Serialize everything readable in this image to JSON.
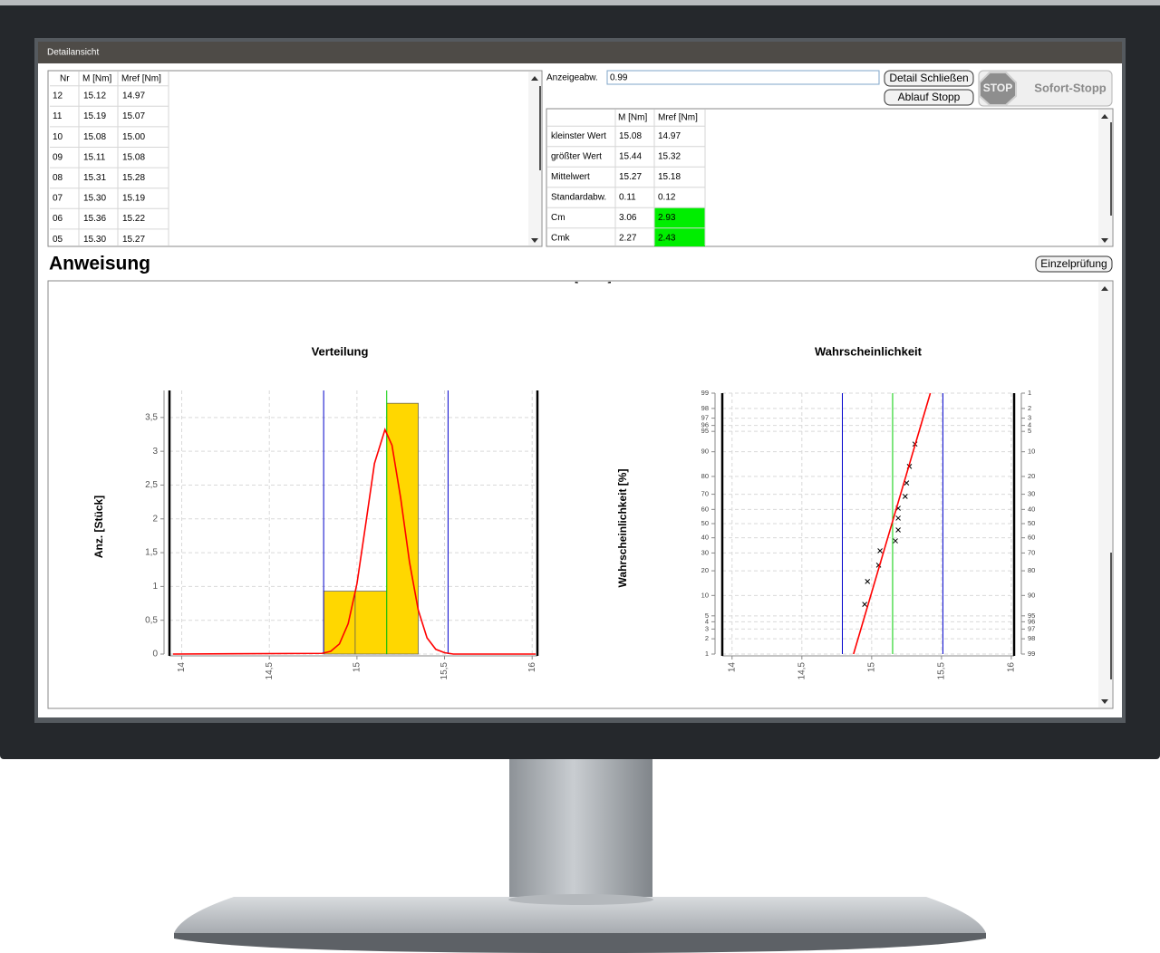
{
  "window": {
    "title": "Detailansicht"
  },
  "table": {
    "headers": [
      "Nr",
      "M [Nm]",
      "Mref [Nm]"
    ],
    "rows": [
      [
        "12",
        "15.12",
        "14.97"
      ],
      [
        "11",
        "15.19",
        "15.07"
      ],
      [
        "10",
        "15.08",
        "15.00"
      ],
      [
        "09",
        "15.11",
        "15.08"
      ],
      [
        "08",
        "15.31",
        "15.28"
      ],
      [
        "07",
        "15.30",
        "15.19"
      ],
      [
        "06",
        "15.36",
        "15.22"
      ],
      [
        "05",
        "15.30",
        "15.27"
      ]
    ]
  },
  "form": {
    "label": "Anzeigeabw.",
    "value": "0.99"
  },
  "buttons": {
    "close": "Detail Schließen",
    "stop": "Ablauf Stopp",
    "stop_sign": "STOP",
    "emergency": "Sofort-Stopp",
    "single": "Einzelprüfung"
  },
  "stats": {
    "headers": [
      "M [Nm]",
      "Mref [Nm]"
    ],
    "rows": [
      [
        "kleinster Wert",
        "15.08",
        "14.97"
      ],
      [
        "größter Wert",
        "15.44",
        "15.32"
      ],
      [
        "Mittelwert",
        "15.27",
        "15.18"
      ],
      [
        "Standardabw.",
        "0.11",
        "0.12"
      ],
      [
        "Cm",
        "3.06",
        "2.93"
      ],
      [
        "Cmk",
        "2.27",
        "2.43"
      ]
    ]
  },
  "section": {
    "title": "Anweisung",
    "cut_label": "Anzahl [Stück]"
  },
  "chart_data": [
    {
      "type": "histogram",
      "title": "Verteilung",
      "y_label": "Anz. [Stück]",
      "bins": [
        14.81,
        14.99,
        15.17,
        15.35
      ],
      "values": [
        0.93,
        0.93,
        3.71
      ],
      "color": "#ffd700",
      "xlim": [
        13.93,
        16.03
      ],
      "xticks": [
        14,
        {
          "value": 14.5,
          "label": "14,5"
        },
        15,
        {
          "value": 15.5,
          "label": "15,5"
        },
        16
      ],
      "ylim": [
        0,
        3.9
      ],
      "yticks": [
        0,
        {
          "value": 0.5,
          "label": "0,5"
        },
        1,
        {
          "value": 1.5,
          "label": "1,5"
        },
        2,
        {
          "value": 2.5,
          "label": "2,5"
        },
        3,
        {
          "value": 3.5,
          "label": "3,5"
        }
      ],
      "grid": true,
      "series": [
        {
          "type": "line",
          "color": "#ff0000",
          "x": [
            13.95,
            14.8,
            14.85,
            14.9,
            14.95,
            15,
            15.05,
            15.1,
            15.16,
            15.2,
            15.25,
            15.3,
            15.35,
            15.4,
            15.45,
            15.5,
            15.55,
            16.02
          ],
          "values": [
            0,
            0.01,
            0.04,
            0.15,
            0.45,
            1.04,
            1.92,
            2.82,
            3.32,
            3.09,
            2.3,
            1.36,
            0.65,
            0.24,
            0.07,
            0.02,
            0,
            0
          ]
        }
      ],
      "vlines": [
        {
          "x": 14.81,
          "color": "#0000cc"
        },
        {
          "x": 15.52,
          "color": "#0000cc"
        },
        {
          "x": 15.17,
          "color": "#00cc00"
        }
      ]
    },
    {
      "type": "probability",
      "title": "Wahrscheinlichkeit",
      "y_label": "Wahrscheinlichkeit [%]",
      "yscale": "probit",
      "xlim": [
        13.93,
        16.02
      ],
      "xticks": [
        14,
        {
          "value": 14.5,
          "label": "14,5"
        },
        15,
        {
          "value": 15.5,
          "label": "15,5"
        },
        16
      ],
      "ylim": [
        1,
        99
      ],
      "yticks": [
        1,
        2,
        3,
        4,
        5,
        10,
        20,
        30,
        40,
        50,
        60,
        70,
        80,
        90,
        95,
        96,
        97,
        98,
        99
      ],
      "y2lim": [
        99,
        1
      ],
      "y2ticks": [
        1,
        2,
        3,
        4,
        5,
        10,
        20,
        30,
        40,
        50,
        60,
        70,
        80,
        90,
        95,
        96,
        97,
        98,
        99
      ],
      "grid": true,
      "series": [
        {
          "type": "scatter",
          "marker": "x",
          "color": "#000000",
          "x": [
            14.95,
            14.97,
            15.05,
            15.06,
            15.17,
            15.19,
            15.19,
            15.19,
            15.24,
            15.25,
            15.27,
            15.31
          ],
          "values": [
            7.5,
            15.1,
            22.9,
            31.4,
            37.9,
            45.5,
            53.9,
            60.8,
            68.6,
            76.6,
            84.6,
            92.2
          ]
        },
        {
          "type": "line",
          "color": "#ff0000",
          "x": [
            14.87,
            15.42
          ],
          "values": [
            1,
            99
          ]
        }
      ],
      "vlines": [
        {
          "x": 14.79,
          "color": "#0000cc"
        },
        {
          "x": 15.51,
          "color": "#0000cc"
        },
        {
          "x": 15.15,
          "color": "#00cc00"
        }
      ]
    }
  ]
}
